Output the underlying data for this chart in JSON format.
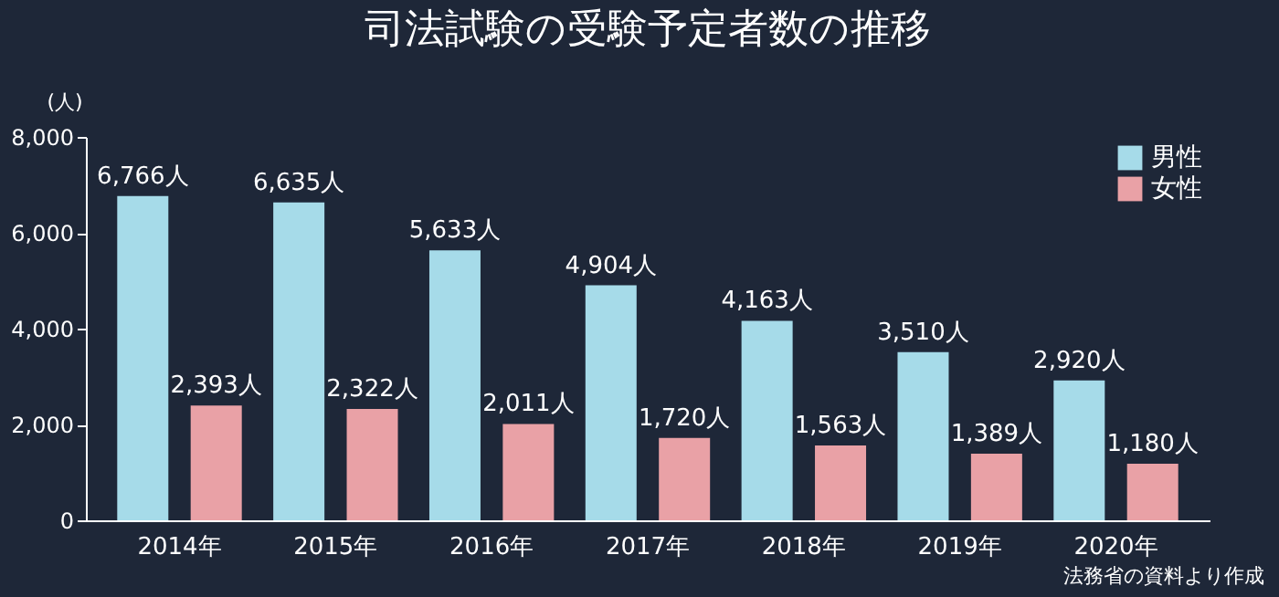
{
  "chart_data": {
    "type": "bar",
    "title": "司法試験の受験予定者数の推移",
    "ylabel": "(人)",
    "categories": [
      "2014年",
      "2015年",
      "2016年",
      "2017年",
      "2018年",
      "2019年",
      "2020年"
    ],
    "series": [
      {
        "name": "男性",
        "color": "#a6dbe9",
        "values": [
          6766,
          6635,
          5633,
          4904,
          4163,
          3510,
          2920
        ],
        "value_labels": [
          "6,766人",
          "6,635人",
          "5,633人",
          "4,904人",
          "4,163人",
          "3,510人",
          "2,920人"
        ]
      },
      {
        "name": "女性",
        "color": "#e9a1a6",
        "values": [
          2393,
          2322,
          2011,
          1720,
          1563,
          1389,
          1180
        ],
        "value_labels": [
          "2,393人",
          "2,322人",
          "2,011人",
          "1,720人",
          "1,563人",
          "1,389人",
          "1,180人"
        ]
      }
    ],
    "ylim": [
      0,
      8000
    ],
    "yticks": [
      {
        "value": 0,
        "label": "0"
      },
      {
        "value": 2000,
        "label": "2,000"
      },
      {
        "value": 4000,
        "label": "4,000"
      },
      {
        "value": 6000,
        "label": "6,000"
      },
      {
        "value": 8000,
        "label": "8,000"
      }
    ],
    "grid": false,
    "legend": "top right",
    "annotations": [
      "法務省の資料より作成"
    ]
  }
}
